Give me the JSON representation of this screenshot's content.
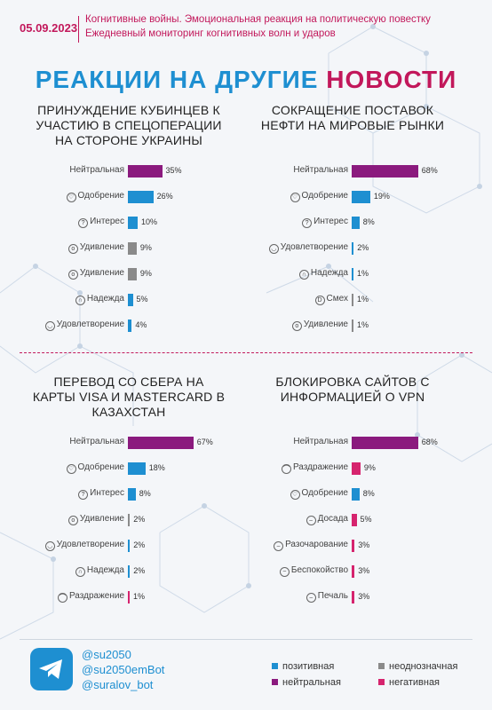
{
  "header": {
    "date": "05.09.2023",
    "line1": "Когнитивные войны. Эмоциональная реакция на политическую повестку",
    "line2": "Ежедневный мониторинг когнитивных волн и ударов"
  },
  "main_title": {
    "part1": "РЕАКЦИИ НА ДРУГИЕ ",
    "part2": "НОВОСТИ"
  },
  "colors": {
    "positive": "#1e8fd1",
    "neutral": "#8b1a7e",
    "ambiguous": "#8a8a8a",
    "negative": "#d6246e",
    "title_blue": "#1e8fd1",
    "accent_pink": "#c2185b"
  },
  "chart_data": [
    {
      "type": "bar",
      "title": "ПРИНУЖДЕНИЕ КУБИНЦЕВ К УЧАСТИЮ В СПЕЦОПЕРАЦИИ НА СТОРОНЕ УКРАИНЫ",
      "title_lines": [
        "ПРИНУЖДЕНИЕ КУБИНЦЕВ К",
        "УЧАСТИЮ В СПЕЦОПЕРАЦИИ",
        "НА СТОРОНЕ УКРАИНЫ"
      ],
      "orientation": "horizontal",
      "xlim": [
        0,
        70
      ],
      "categories": [
        "Нейтральная",
        "Одобрение",
        "Интерес",
        "Удивление",
        "Удивление",
        "Надежда",
        "Удовлетворение"
      ],
      "values": [
        35,
        26,
        10,
        9,
        9,
        5,
        4
      ],
      "value_labels": [
        "35%",
        "26%",
        "10%",
        "9%",
        "9%",
        "5%",
        "4%"
      ],
      "kinds": [
        "neutral",
        "positive",
        "positive",
        "ambiguous",
        "ambiguous",
        "positive",
        "positive"
      ],
      "icons": [
        "",
        "heart-smile-icon",
        "thinking-icon",
        "surprised-icon",
        "glasses-surprise-icon",
        "praying-hands-icon",
        "content-face-icon"
      ]
    },
    {
      "type": "bar",
      "title": "СОКРАЩЕНИЕ ПОСТАВОК НЕФТИ НА МИРОВЫЕ РЫНКИ",
      "title_lines": [
        "СОКРАЩЕНИЕ ПОСТАВОК",
        "НЕФТИ НА МИРОВЫЕ РЫНКИ"
      ],
      "orientation": "horizontal",
      "xlim": [
        0,
        70
      ],
      "categories": [
        "Нейтральная",
        "Одобрение",
        "Интерес",
        "Удовлетворение",
        "Надежда",
        "Смех",
        "Удивление"
      ],
      "values": [
        68,
        19,
        8,
        2,
        1,
        1,
        1
      ],
      "value_labels": [
        "68%",
        "19%",
        "8%",
        "2%",
        "1%",
        "1%",
        "1%"
      ],
      "kinds": [
        "neutral",
        "positive",
        "positive",
        "positive",
        "positive",
        "ambiguous",
        "ambiguous"
      ],
      "icons": [
        "",
        "heart-smile-icon",
        "thinking-icon",
        "content-face-icon",
        "praying-hands-icon",
        "laugh-icon",
        "surprised-icon"
      ]
    },
    {
      "type": "bar",
      "title": "ПЕРЕВОД СО СБЕРА НА КАРТЫ VISA И MASTERCARD В КАЗАХСТАН",
      "title_lines": [
        "ПЕРЕВОД СО СБЕРА НА",
        "КАРТЫ VISA И MASTERCARD В",
        "КАЗАХСТАН"
      ],
      "orientation": "horizontal",
      "xlim": [
        0,
        70
      ],
      "categories": [
        "Нейтральная",
        "Одобрение",
        "Интерес",
        "Удивление",
        "Удовлетворение",
        "Надежда",
        "Раздражение"
      ],
      "values": [
        67,
        18,
        8,
        2,
        2,
        2,
        1
      ],
      "value_labels": [
        "67%",
        "18%",
        "8%",
        "2%",
        "2%",
        "2%",
        "1%"
      ],
      "kinds": [
        "neutral",
        "positive",
        "positive",
        "ambiguous",
        "positive",
        "positive",
        "negative"
      ],
      "icons": [
        "",
        "heart-smile-icon",
        "thinking-icon",
        "surprised-icon",
        "content-face-icon",
        "praying-hands-icon",
        "annoyed-face-icon"
      ]
    },
    {
      "type": "bar",
      "title": "БЛОКИРОВКА САЙТОВ С ИНФОРМАЦИЕЙ О VPN",
      "title_lines": [
        "БЛОКИРОВКА САЙТОВ С",
        "ИНФОРМАЦИЕЙ О VPN"
      ],
      "orientation": "horizontal",
      "xlim": [
        0,
        70
      ],
      "categories": [
        "Нейтральная",
        "Раздражение",
        "Одобрение",
        "Досада",
        "Разочарование",
        "Беспокойство",
        "Печаль"
      ],
      "values": [
        68,
        9,
        8,
        5,
        3,
        3,
        3
      ],
      "value_labels": [
        "68%",
        "9%",
        "8%",
        "5%",
        "3%",
        "3%",
        "3%"
      ],
      "kinds": [
        "neutral",
        "negative",
        "positive",
        "negative",
        "negative",
        "negative",
        "negative"
      ],
      "icons": [
        "",
        "annoyed-face-icon",
        "heart-smile-icon",
        "frown-icon",
        "disappointed-icon",
        "worried-icon",
        "sad-icon"
      ]
    }
  ],
  "footer": {
    "handles": [
      "@su2050",
      "@su2050emBot",
      "@suralov_bot"
    ],
    "legend": [
      {
        "label": "позитивная",
        "kind": "positive"
      },
      {
        "label": "неоднозначная",
        "kind": "ambiguous"
      },
      {
        "label": "нейтральная",
        "kind": "neutral"
      },
      {
        "label": "негативная",
        "kind": "negative"
      }
    ],
    "logo_icon": "telegram-icon"
  }
}
